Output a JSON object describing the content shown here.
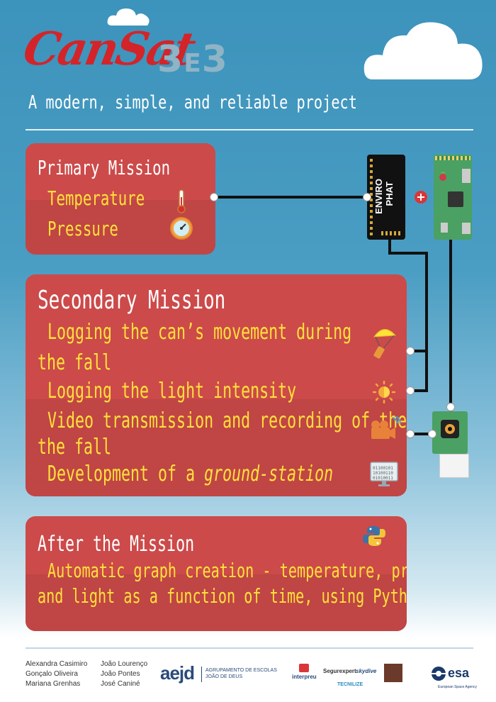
{
  "header": {
    "logo_text": "CanSat",
    "logo_number": "3",
    "logo_letter": "E",
    "logo_number2": "3",
    "subtitle": "A modern, simple, and reliable project"
  },
  "primary": {
    "title": "Primary Mission",
    "items": [
      "Temperature",
      "Pressure"
    ]
  },
  "secondary": {
    "title": "Secondary Mission",
    "item1_line1": "Logging the can’s movement during",
    "item1_line2": "the fall",
    "item2": "Logging the light intensity",
    "item3_line1": "Video transmission and recording of the",
    "item3_line2": "the fall",
    "item4_prefix": "Development of a ",
    "item4_em": "ground-station"
  },
  "after": {
    "title": "After the Mission",
    "line1": "Automatic graph creation - temperature, pressure",
    "line2": "and light as a function of time, using Python"
  },
  "hardware": {
    "board_line1": "ENVIRO",
    "board_line2": "PHAT"
  },
  "credits": {
    "col1": [
      "Alexandra Casimiro",
      "Gonçalo Oliveira",
      "Mariana Grenhas"
    ],
    "col2": [
      "João Lourenço",
      "João Pontes",
      "José Caniné"
    ]
  },
  "sponsors": {
    "aejd": "aejd",
    "aejd_sub1": "AGRUPAMENTO DE ESCOLAS",
    "aejd_sub2": "JOÃO DE DEUS",
    "interpreu": "interpreu",
    "segurexpert": "Segurexpert",
    "skydive": "skydive",
    "tecnilize": "TECNILIZE",
    "esa": "esa",
    "esa_sub": "European Space Agency"
  }
}
